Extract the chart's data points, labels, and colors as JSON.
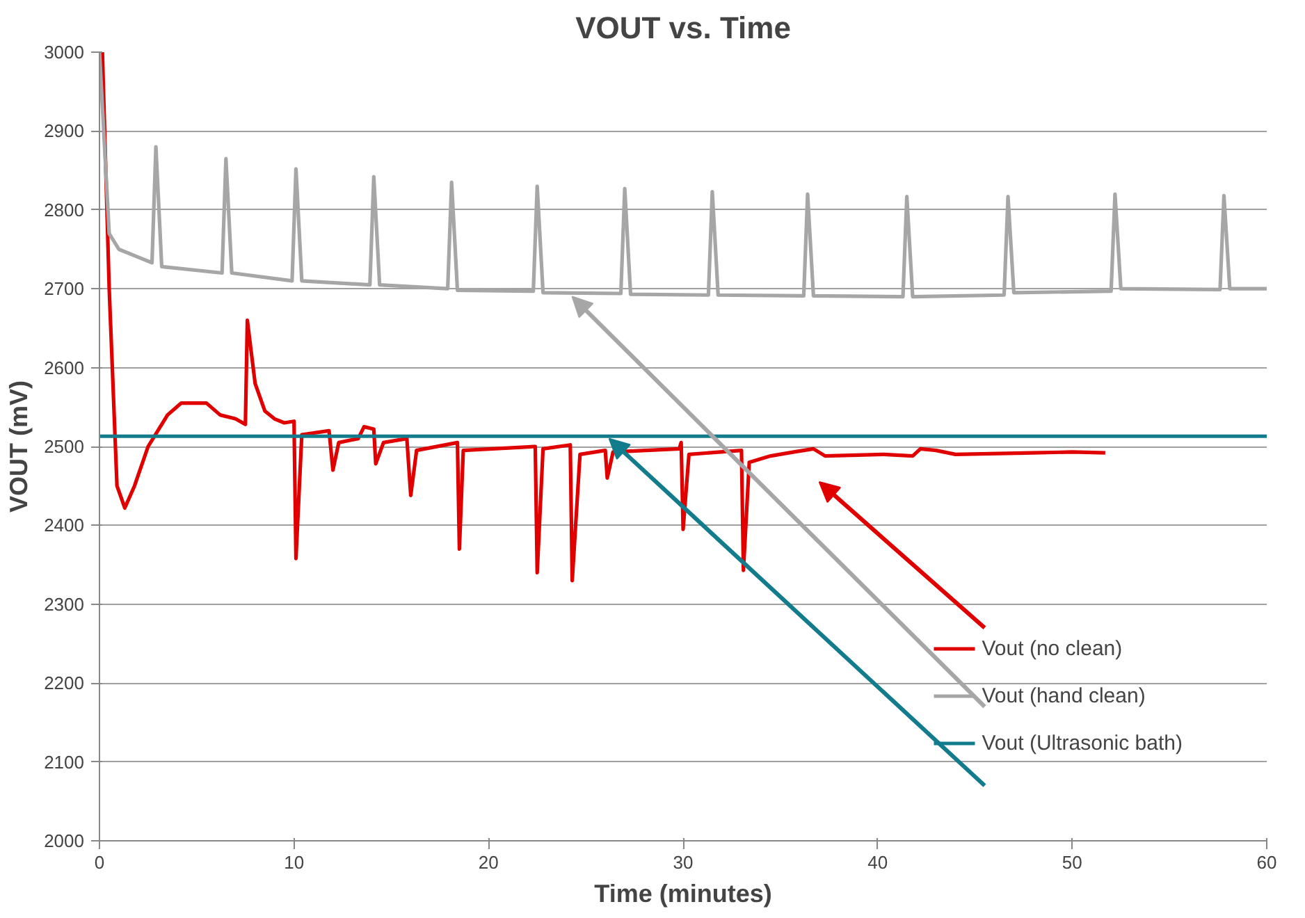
{
  "chart_data": {
    "type": "line",
    "title": "VOUT vs. Time",
    "xlabel": "Time (minutes)",
    "ylabel": "VOUT (mV)",
    "xlim": [
      0,
      60
    ],
    "xticks": [
      0,
      10,
      20,
      30,
      40,
      50,
      60
    ],
    "ylim": [
      2000,
      3000
    ],
    "yticks": [
      2000,
      2100,
      2200,
      2300,
      2400,
      2500,
      2600,
      2700,
      2800,
      2900,
      3000
    ],
    "grid": "y",
    "legend": "bottom right",
    "line_style": "solid",
    "marker": "none",
    "series": [
      {
        "name": "Vout (no clean)",
        "color": "#e00000",
        "x": [
          0.15,
          0.5,
          0.9,
          1.3,
          1.8,
          2.5,
          3.5,
          4.2,
          5.5,
          6.2,
          7.0,
          7.5,
          7.6,
          8.0,
          8.5,
          9.0,
          9.5,
          10.0,
          10.1,
          10.4,
          11.8,
          12.0,
          12.3,
          13.3,
          13.6,
          14.1,
          14.2,
          14.6,
          15.8,
          16.0,
          16.3,
          18.4,
          18.5,
          18.7,
          22.4,
          22.5,
          22.8,
          24.2,
          24.3,
          24.7,
          26.0,
          26.1,
          26.4,
          29.8,
          29.9,
          30.0,
          30.3,
          33.0,
          33.1,
          33.4,
          34.5,
          35.7,
          36.7,
          37.3,
          40.3,
          41.8,
          42.2,
          43.0,
          44.0,
          48.0,
          50.0,
          51.7
        ],
        "values": [
          3000,
          2700,
          2450,
          2422,
          2450,
          2500,
          2540,
          2555,
          2555,
          2540,
          2535,
          2528,
          2660,
          2580,
          2545,
          2535,
          2530,
          2532,
          2358,
          2515,
          2520,
          2470,
          2505,
          2510,
          2525,
          2522,
          2478,
          2505,
          2510,
          2438,
          2495,
          2505,
          2370,
          2495,
          2500,
          2340,
          2497,
          2502,
          2330,
          2490,
          2495,
          2460,
          2493,
          2497,
          2505,
          2395,
          2490,
          2495,
          2343,
          2480,
          2488,
          2493,
          2497,
          2488,
          2490,
          2488,
          2497,
          2495,
          2490,
          2492,
          2493,
          2492
        ]
      },
      {
        "name": "Vout (hand clean)",
        "color": "#a6a6a6",
        "x": [
          0.0,
          0.5,
          1.0,
          2.0,
          2.7,
          2.9,
          3.2,
          6.3,
          6.5,
          6.8,
          9.9,
          10.1,
          10.4,
          13.9,
          14.1,
          14.4,
          17.9,
          18.1,
          18.4,
          22.3,
          22.5,
          22.8,
          26.8,
          27.0,
          27.3,
          31.3,
          31.5,
          31.8,
          36.2,
          36.4,
          36.7,
          41.3,
          41.5,
          41.8,
          46.5,
          46.7,
          47.0,
          52.0,
          52.2,
          52.5,
          57.6,
          57.8,
          58.1,
          60.0
        ],
        "values": [
          3000,
          2770,
          2750,
          2740,
          2733,
          2880,
          2728,
          2720,
          2865,
          2720,
          2710,
          2852,
          2710,
          2705,
          2842,
          2705,
          2700,
          2835,
          2698,
          2697,
          2830,
          2695,
          2694,
          2827,
          2693,
          2692,
          2823,
          2692,
          2691,
          2820,
          2691,
          2690,
          2817,
          2690,
          2692,
          2817,
          2695,
          2697,
          2820,
          2700,
          2699,
          2818,
          2700,
          2700
        ]
      },
      {
        "name": "Vout (Ultrasonic bath)",
        "color": "#127c8c",
        "x": [
          0,
          60
        ],
        "values": [
          2513,
          2513
        ]
      }
    ]
  }
}
